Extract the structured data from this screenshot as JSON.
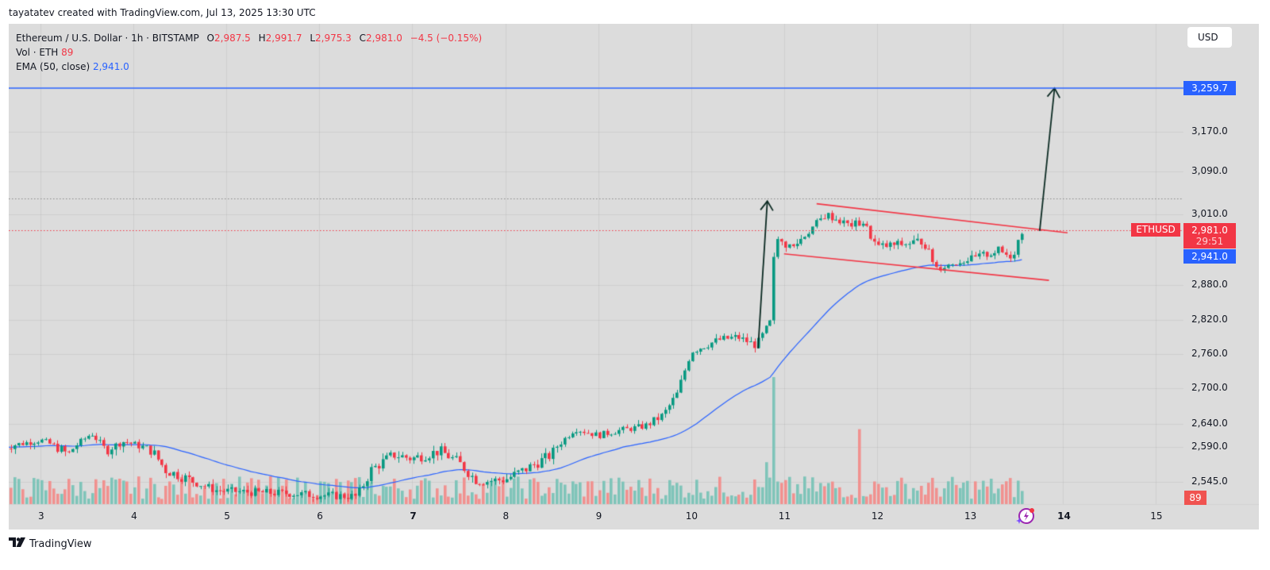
{
  "credit": "tayatatev created with TradingView.com, Jul 13, 2025 13:30 UTC",
  "legend": {
    "symbol": "Ethereum / U.S. Dollar · 1h · BITSTAMP",
    "open_label": "O",
    "open": "2,987.5",
    "high_label": "H",
    "high": "2,991.7",
    "low_label": "L",
    "low": "2,975.3",
    "close_label": "C",
    "close": "2,981.0",
    "change": "−4.5 (−0.15%)",
    "volume_label": "Vol · ETH",
    "volume": "89",
    "ema_label": "EMA (50, close)",
    "ema": "2,941.0"
  },
  "currency_button": "USD",
  "price_tags": {
    "target": "3,259.7",
    "symbol": "ETHUSD",
    "last": "2,981.0",
    "countdown": "29:51",
    "ema": "2,941.0",
    "volume": "89"
  },
  "footer": {
    "brand": "TradingView",
    "logo_icon": "tradingview-logo-icon"
  },
  "colors": {
    "background": "#dcdcdc",
    "up": "#089981",
    "down": "#f23645",
    "volume_up": "#7fc4b9",
    "volume_down": "#f0918f",
    "ema": "#2962ff",
    "target_line": "#2962ff",
    "channel": "#f23645",
    "arrow": "#0b2a22"
  },
  "chart_data": {
    "type": "candlestick",
    "title": "Ethereum / U.S. Dollar · 1h · BITSTAMP",
    "xlabel": "",
    "ylabel": "USD",
    "x_ticks": [
      "3",
      "4",
      "5",
      "6",
      "7",
      "8",
      "9",
      "10",
      "11",
      "12",
      "13",
      "14",
      "15"
    ],
    "y_ticks": [
      3259.7,
      3170.0,
      3090.0,
      3010.0,
      2880.0,
      2820.0,
      2760.0,
      2700.0,
      2640.0,
      2590.0,
      2545.0
    ],
    "ylim": [
      2500,
      3290
    ],
    "grid": true,
    "last_price": 2981.0,
    "ema_50": 2941.0,
    "target_price": 3259.7,
    "high_marker_dotted": 3040,
    "daily_path": [
      {
        "day": 2.6,
        "price": 2590
      },
      {
        "day": 3.0,
        "price": 2605
      },
      {
        "day": 3.3,
        "price": 2580
      },
      {
        "day": 3.55,
        "price": 2620
      },
      {
        "day": 3.7,
        "price": 2585
      },
      {
        "day": 3.9,
        "price": 2602
      },
      {
        "day": 4.2,
        "price": 2585
      },
      {
        "day": 4.35,
        "price": 2560
      },
      {
        "day": 4.6,
        "price": 2548
      },
      {
        "day": 4.9,
        "price": 2530
      },
      {
        "day": 5.3,
        "price": 2527
      },
      {
        "day": 5.7,
        "price": 2525
      },
      {
        "day": 6.0,
        "price": 2522
      },
      {
        "day": 6.4,
        "price": 2520
      },
      {
        "day": 6.55,
        "price": 2560
      },
      {
        "day": 6.8,
        "price": 2580
      },
      {
        "day": 7.0,
        "price": 2575
      },
      {
        "day": 7.3,
        "price": 2585
      },
      {
        "day": 7.5,
        "price": 2570
      },
      {
        "day": 7.7,
        "price": 2545
      },
      {
        "day": 8.0,
        "price": 2548
      },
      {
        "day": 8.2,
        "price": 2560
      },
      {
        "day": 8.5,
        "price": 2580
      },
      {
        "day": 8.75,
        "price": 2630
      },
      {
        "day": 9.0,
        "price": 2615
      },
      {
        "day": 9.2,
        "price": 2625
      },
      {
        "day": 9.5,
        "price": 2635
      },
      {
        "day": 9.7,
        "price": 2655
      },
      {
        "day": 9.85,
        "price": 2690
      },
      {
        "day": 10.0,
        "price": 2765
      },
      {
        "day": 10.3,
        "price": 2785
      },
      {
        "day": 10.5,
        "price": 2790
      },
      {
        "day": 10.7,
        "price": 2775
      },
      {
        "day": 10.85,
        "price": 2815
      },
      {
        "day": 10.9,
        "price": 2965
      },
      {
        "day": 11.1,
        "price": 2955
      },
      {
        "day": 11.3,
        "price": 2985
      },
      {
        "day": 11.45,
        "price": 3010
      },
      {
        "day": 11.7,
        "price": 2990
      },
      {
        "day": 11.85,
        "price": 2995
      },
      {
        "day": 12.0,
        "price": 2955
      },
      {
        "day": 12.3,
        "price": 2960
      },
      {
        "day": 12.5,
        "price": 2965
      },
      {
        "day": 12.65,
        "price": 2915
      },
      {
        "day": 12.8,
        "price": 2925
      },
      {
        "day": 13.0,
        "price": 2935
      },
      {
        "day": 13.3,
        "price": 2950
      },
      {
        "day": 13.45,
        "price": 2940
      },
      {
        "day": 13.56,
        "price": 2981
      }
    ],
    "volume_spikes": [
      {
        "day": 2.6,
        "rel": 0.95
      },
      {
        "day": 10.82,
        "rel": 0.33
      },
      {
        "day": 10.9,
        "rel": 1.0
      },
      {
        "day": 11.8,
        "rel": 0.59
      }
    ],
    "annotations": [
      {
        "type": "arrow",
        "label": "impulse (flagpole)",
        "from": {
          "day": 10.72,
          "price": 2770
        },
        "to": {
          "day": 10.82,
          "price": 3035
        }
      },
      {
        "type": "trendline",
        "label": "channel upper",
        "from": {
          "day": 11.35,
          "price": 3030
        },
        "to": {
          "day": 14.05,
          "price": 2977
        }
      },
      {
        "type": "trendline",
        "label": "channel lower",
        "from": {
          "day": 11.0,
          "price": 2945
        },
        "to": {
          "day": 13.85,
          "price": 2890
        }
      },
      {
        "type": "arrow",
        "label": "breakout target",
        "from": {
          "day": 13.75,
          "price": 2980
        },
        "to": {
          "day": 13.91,
          "price": 3259.7
        }
      },
      {
        "type": "hline",
        "label": "target",
        "price": 3259.7
      }
    ]
  }
}
